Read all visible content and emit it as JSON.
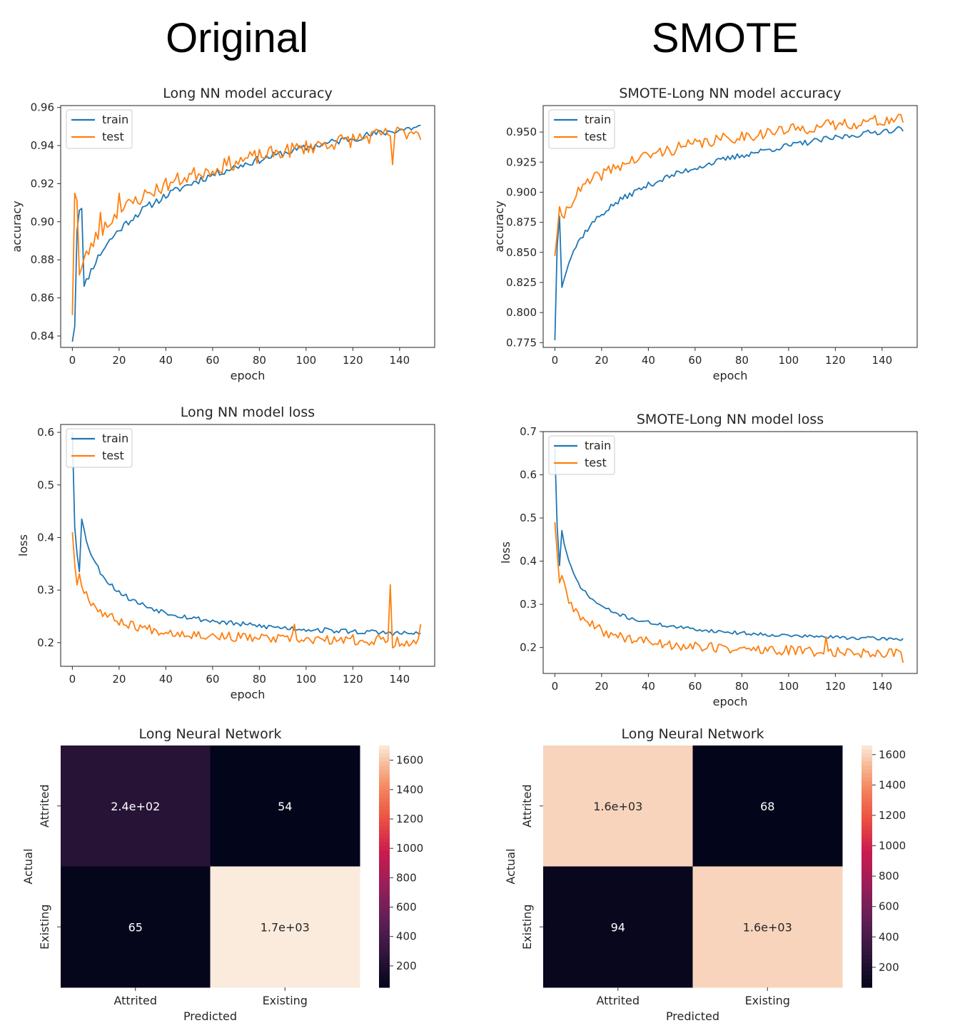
{
  "headers": {
    "left": "Original",
    "right": "SMOTE"
  },
  "chart_data": [
    {
      "id": "orig-acc",
      "type": "line",
      "title": "Long NN model accuracy",
      "xlabel": "epoch",
      "ylabel": "accuracy",
      "xlim": [
        -5,
        155
      ],
      "ylim": [
        0.834,
        0.961
      ],
      "xticks": [
        0,
        20,
        40,
        60,
        80,
        100,
        120,
        140
      ],
      "xtick_labels": [
        "0",
        "20",
        "40",
        "60",
        "80",
        "100",
        "120",
        "140"
      ],
      "yticks": [
        0.84,
        0.86,
        0.88,
        0.9,
        0.92,
        0.94,
        0.96
      ],
      "ytick_labels": [
        "0.84",
        "0.86",
        "0.88",
        "0.90",
        "0.92",
        "0.94",
        "0.96"
      ],
      "legend": {
        "placement": "top-left",
        "entries": [
          "train",
          "test"
        ]
      },
      "series": [
        {
          "name": "train",
          "color": "#1f77b4",
          "shape": "log-rise",
          "start": 0.837,
          "end": 0.95,
          "k": 3,
          "noise": 0.002,
          "seed": 11,
          "overrides": [
            [
              1,
              0.845
            ],
            [
              2,
              0.895
            ],
            [
              3,
              0.906
            ],
            [
              4,
              0.907
            ]
          ]
        },
        {
          "name": "test",
          "color": "#ff7f0e",
          "shape": "log-rise",
          "start": 0.851,
          "end": 0.948,
          "k": 2,
          "noise": 0.004,
          "seed": 23,
          "overrides": [
            [
              1,
              0.915
            ],
            [
              2,
              0.911
            ],
            [
              12,
              0.905
            ],
            [
              20,
              0.915
            ],
            [
              62,
              0.928
            ],
            [
              137,
              0.93
            ],
            [
              149,
              0.943
            ]
          ]
        }
      ]
    },
    {
      "id": "smote-acc",
      "type": "line",
      "title": "SMOTE-Long NN model accuracy",
      "xlabel": "epoch",
      "ylabel": "accuracy",
      "xlim": [
        -5,
        155
      ],
      "ylim": [
        0.771,
        0.972
      ],
      "xticks": [
        0,
        20,
        40,
        60,
        80,
        100,
        120,
        140
      ],
      "xtick_labels": [
        "0",
        "20",
        "40",
        "60",
        "80",
        "100",
        "120",
        "140"
      ],
      "yticks": [
        0.775,
        0.8,
        0.825,
        0.85,
        0.875,
        0.9,
        0.925,
        0.95
      ],
      "ytick_labels": [
        "0.775",
        "0.800",
        "0.825",
        "0.850",
        "0.875",
        "0.900",
        "0.925",
        "0.950"
      ],
      "legend": {
        "placement": "top-left",
        "entries": [
          "train",
          "test"
        ]
      },
      "series": [
        {
          "name": "train",
          "color": "#1f77b4",
          "shape": "log-rise",
          "start": 0.777,
          "end": 0.953,
          "k": 1.2,
          "noise": 0.0025,
          "seed": 37,
          "overrides": [
            [
              1,
              0.855
            ],
            [
              2,
              0.88
            ]
          ]
        },
        {
          "name": "test",
          "color": "#ff7f0e",
          "shape": "log-rise",
          "start": 0.847,
          "end": 0.961,
          "k": 1.2,
          "noise": 0.005,
          "seed": 41,
          "overrides": [
            [
              1,
              0.865
            ],
            [
              2,
              0.888
            ]
          ]
        }
      ]
    },
    {
      "id": "orig-loss",
      "type": "line",
      "title": "Long NN model loss",
      "xlabel": "epoch",
      "ylabel": "loss",
      "xlim": [
        -5,
        155
      ],
      "ylim": [
        0.155,
        0.615
      ],
      "xticks": [
        0,
        20,
        40,
        60,
        80,
        100,
        120,
        140
      ],
      "xtick_labels": [
        "0",
        "20",
        "40",
        "60",
        "80",
        "100",
        "120",
        "140"
      ],
      "yticks": [
        0.2,
        0.3,
        0.4,
        0.5,
        0.6
      ],
      "ytick_labels": [
        "0.2",
        "0.3",
        "0.4",
        "0.5",
        "0.6"
      ],
      "legend": {
        "placement": "top-left",
        "entries": [
          "train",
          "test"
        ]
      },
      "series": [
        {
          "name": "train",
          "color": "#1f77b4",
          "shape": "decay",
          "start": 0.6,
          "end": 0.19,
          "k": 4,
          "noise": 0.005,
          "seed": 53,
          "overrides": [
            [
              1,
              0.42
            ],
            [
              2,
              0.37
            ],
            [
              3,
              0.335
            ]
          ]
        },
        {
          "name": "test",
          "color": "#ff7f0e",
          "shape": "decay",
          "start": 0.41,
          "end": 0.188,
          "k": 3.5,
          "noise": 0.009,
          "seed": 67,
          "overrides": [
            [
              1,
              0.35
            ],
            [
              2,
              0.31
            ],
            [
              95,
              0.235
            ],
            [
              120,
              0.215
            ],
            [
              131,
              0.215
            ],
            [
              136,
              0.31
            ],
            [
              137,
              0.19
            ],
            [
              149,
              0.235
            ]
          ]
        }
      ]
    },
    {
      "id": "smote-loss",
      "type": "line",
      "title": "SMOTE-Long NN model loss",
      "xlabel": "epoch",
      "ylabel": "loss",
      "xlim": [
        -5,
        155
      ],
      "ylim": [
        0.14,
        0.7
      ],
      "xticks": [
        0,
        20,
        40,
        60,
        80,
        100,
        120,
        140
      ],
      "xtick_labels": [
        "0",
        "20",
        "40",
        "60",
        "80",
        "100",
        "120",
        "140"
      ],
      "yticks": [
        0.2,
        0.3,
        0.4,
        0.5,
        0.6,
        0.7
      ],
      "ytick_labels": [
        "0.2",
        "0.3",
        "0.4",
        "0.5",
        "0.6",
        "0.7"
      ],
      "legend": {
        "placement": "top-left",
        "entries": [
          "train",
          "test"
        ]
      },
      "series": [
        {
          "name": "train",
          "color": "#1f77b4",
          "shape": "decay",
          "start": 0.66,
          "end": 0.195,
          "k": 3,
          "noise": 0.004,
          "seed": 71,
          "overrides": [
            [
              1,
              0.48
            ],
            [
              2,
              0.39
            ]
          ]
        },
        {
          "name": "test",
          "color": "#ff7f0e",
          "shape": "decay",
          "start": 0.49,
          "end": 0.17,
          "k": 3,
          "noise": 0.012,
          "seed": 89,
          "overrides": [
            [
              1,
              0.42
            ],
            [
              2,
              0.35
            ],
            [
              116,
              0.225
            ],
            [
              149,
              0.165
            ]
          ]
        }
      ]
    },
    {
      "id": "orig-cm",
      "type": "heatmap",
      "title": "Long Neural Network",
      "xlabel": "Predicted",
      "ylabel": "Actual",
      "rows": [
        "Attrited",
        "Existing"
      ],
      "cols": [
        "Attrited",
        "Existing"
      ],
      "values": [
        [
          240,
          54
        ],
        [
          65,
          1700
        ]
      ],
      "cell_labels": [
        [
          "2.4e+02",
          "54"
        ],
        [
          "65",
          "1.7e+03"
        ]
      ],
      "colorbar": {
        "min": 54,
        "max": 1700,
        "ticks": [
          200,
          400,
          600,
          800,
          1000,
          1200,
          1400,
          1600
        ],
        "tick_labels": [
          "200",
          "400",
          "600",
          "800",
          "1000",
          "1200",
          "1400",
          "1600"
        ]
      }
    },
    {
      "id": "smote-cm",
      "type": "heatmap",
      "title": "Long Neural Network",
      "xlabel": "Predicted",
      "ylabel": "Actual",
      "rows": [
        "Attrited",
        "Existing"
      ],
      "cols": [
        "Attrited",
        "Existing"
      ],
      "values": [
        [
          1600,
          68
        ],
        [
          94,
          1600
        ]
      ],
      "cell_labels": [
        [
          "1.6e+03",
          "68"
        ],
        [
          "94",
          "1.6e+03"
        ]
      ],
      "colorbar": {
        "min": 68,
        "max": 1660,
        "ticks": [
          200,
          400,
          600,
          800,
          1000,
          1200,
          1400,
          1600
        ],
        "tick_labels": [
          "200",
          "400",
          "600",
          "800",
          "1000",
          "1200",
          "1400",
          "1600"
        ]
      }
    }
  ]
}
